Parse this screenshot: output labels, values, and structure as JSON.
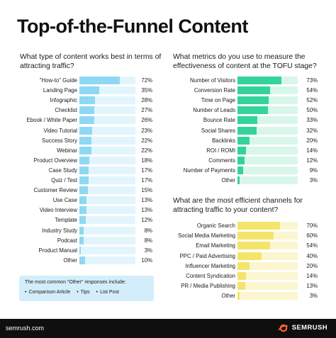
{
  "title": "Top-of-the-Funnel Content",
  "colors": {
    "left_fill": "#8fd8f3",
    "left_track": "#e3f5fc",
    "mid_fill": "#34d399",
    "mid_track": "#d9f6ea",
    "bot_fill": "#f5e46a",
    "bot_track": "#fbf6d0"
  },
  "chart_data": [
    {
      "type": "bar",
      "title": "What type of content works best in terms of attracting traffic?",
      "categories": [
        "\"How-to\" Guide",
        "Landing Page",
        "Infographic",
        "Checklist",
        "Ebook / White Paper",
        "Video Tutorial",
        "Success Story",
        "Webinar",
        "Product Overview",
        "Case Study",
        "Quiz / Test",
        "Customer Review",
        "Use Case",
        "Video Interview",
        "Template",
        "Industry Study",
        "Podcast",
        "Product Manual",
        "Other"
      ],
      "values": [
        72,
        35,
        28,
        27,
        26,
        23,
        22,
        22,
        18,
        17,
        17,
        15,
        13,
        13,
        12,
        8,
        8,
        3,
        10
      ],
      "value_labels": [
        "72%",
        "35%",
        "28%",
        "27%",
        "26%",
        "23%",
        "22%",
        "22%",
        "18%",
        "17%",
        "17%",
        "15%",
        "13%",
        "13%",
        "12%",
        "8%",
        "8%",
        "3%",
        "10%"
      ],
      "xlim": [
        0,
        100
      ]
    },
    {
      "type": "bar",
      "title": "What metrics do you use to measure the effectiveness of content at the TOFU stage?",
      "categories": [
        "Number of Visitors",
        "Conversion Rate",
        "Time on Page",
        "Number of Leads",
        "Bounce Rate",
        "Social Shares",
        "Backlinks",
        "ROI / ROMI",
        "Comments",
        "Number of Payments",
        "Other"
      ],
      "values": [
        73,
        54,
        52,
        50,
        33,
        32,
        20,
        14,
        12,
        9,
        3
      ],
      "value_labels": [
        "73%",
        "54%",
        "52%",
        "50%",
        "33%",
        "32%",
        "20%",
        "14%",
        "12%",
        "9%",
        "3%"
      ],
      "xlim": [
        0,
        100
      ]
    },
    {
      "type": "bar",
      "title": "What are the most efficient channels for attracting traffic to your content?",
      "categories": [
        "Organic Search",
        "Social Media Marketing",
        "Email Marketing",
        "PPC / Paid Advertising",
        "Influencer Marketing",
        "Content Syndication",
        "PR / Media Publishing",
        "Other"
      ],
      "values": [
        70,
        60,
        54,
        40,
        20,
        14,
        13,
        3
      ],
      "value_labels": [
        "70%",
        "60%",
        "54%",
        "40%",
        "20%",
        "14%",
        "13%",
        "3%"
      ],
      "xlim": [
        0,
        100
      ]
    }
  ],
  "note": {
    "title": "The most common \"Other\" responses include:",
    "items": [
      "Comparison Article",
      "Tips",
      "List Post"
    ]
  },
  "footer": {
    "url": "semrush.com",
    "brand": "SEMRUSH",
    "brand_color": "#ff642d"
  }
}
